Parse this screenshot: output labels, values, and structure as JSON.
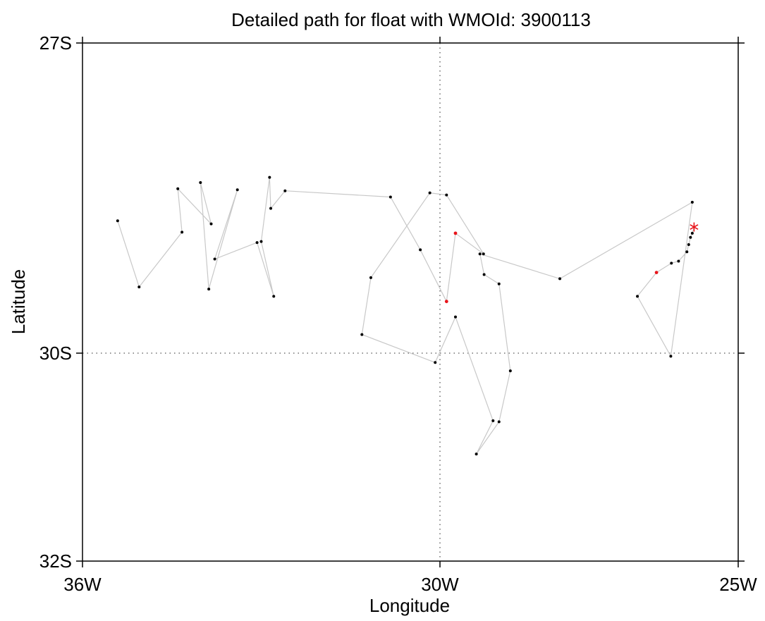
{
  "chart_data": {
    "type": "scatter",
    "title": "Detailed path for float with WMOId: 3900113",
    "xlabel": "Longitude",
    "ylabel": "Latitude",
    "xlim": [
      -36,
      -25
    ],
    "ylim": [
      -32,
      -27
    ],
    "x_ticks": [
      {
        "value": -36,
        "label": "36W"
      },
      {
        "value": -30,
        "label": "30W"
      },
      {
        "value": -25,
        "label": "25W"
      }
    ],
    "y_ticks": [
      {
        "value": -27,
        "label": "27S"
      },
      {
        "value": -30,
        "label": "30S"
      },
      {
        "value": -32,
        "label": "32S"
      }
    ],
    "reference_lines": {
      "x": -30,
      "y": -30
    },
    "track_color": "#c8c8c8",
    "point_color": "#000000",
    "highlight_color": "#e8151b",
    "start_marker": {
      "lon": -25.74,
      "lat": -28.78,
      "symbol": "*"
    },
    "track": [
      {
        "lon": -25.74,
        "lat": -28.78
      },
      {
        "lon": -25.77,
        "lat": -28.84
      },
      {
        "lon": -25.8,
        "lat": -28.88
      },
      {
        "lon": -25.83,
        "lat": -28.95
      },
      {
        "lon": -25.86,
        "lat": -29.02
      },
      {
        "lon": -26.0,
        "lat": -29.11
      },
      {
        "lon": -26.12,
        "lat": -29.13
      },
      {
        "lon": -26.37,
        "lat": -29.22,
        "highlight": true
      },
      {
        "lon": -26.69,
        "lat": -29.45
      },
      {
        "lon": -26.13,
        "lat": -30.03
      },
      {
        "lon": -25.77,
        "lat": -28.54
      },
      {
        "lon": -27.99,
        "lat": -29.28
      },
      {
        "lon": -29.33,
        "lat": -29.04
      },
      {
        "lon": -29.26,
        "lat": -29.24
      },
      {
        "lon": -29.01,
        "lat": -29.33
      },
      {
        "lon": -28.82,
        "lat": -30.17
      },
      {
        "lon": -29.01,
        "lat": -30.66
      },
      {
        "lon": -29.39,
        "lat": -30.97
      },
      {
        "lon": -29.11,
        "lat": -30.65
      },
      {
        "lon": -29.74,
        "lat": -29.65
      },
      {
        "lon": -30.08,
        "lat": -30.09
      },
      {
        "lon": -31.31,
        "lat": -29.82
      },
      {
        "lon": -31.16,
        "lat": -29.27
      },
      {
        "lon": -30.17,
        "lat": -28.45
      },
      {
        "lon": -29.89,
        "lat": -28.47
      },
      {
        "lon": -29.27,
        "lat": -29.04
      },
      {
        "lon": -29.74,
        "lat": -28.84,
        "highlight": true
      },
      {
        "lon": -29.89,
        "lat": -29.5,
        "highlight": true
      },
      {
        "lon": -30.33,
        "lat": -29.0
      },
      {
        "lon": -30.83,
        "lat": -28.49
      },
      {
        "lon": -32.6,
        "lat": -28.43
      },
      {
        "lon": -32.84,
        "lat": -28.6
      },
      {
        "lon": -32.86,
        "lat": -28.3
      },
      {
        "lon": -33.0,
        "lat": -28.92
      },
      {
        "lon": -32.79,
        "lat": -29.45
      },
      {
        "lon": -33.07,
        "lat": -28.93
      },
      {
        "lon": -33.78,
        "lat": -29.09
      },
      {
        "lon": -33.4,
        "lat": -28.42
      },
      {
        "lon": -33.88,
        "lat": -29.38
      },
      {
        "lon": -34.02,
        "lat": -28.35
      },
      {
        "lon": -33.84,
        "lat": -28.75
      },
      {
        "lon": -34.4,
        "lat": -28.41
      },
      {
        "lon": -34.33,
        "lat": -28.83
      },
      {
        "lon": -35.05,
        "lat": -29.36
      },
      {
        "lon": -35.41,
        "lat": -28.72
      }
    ]
  }
}
